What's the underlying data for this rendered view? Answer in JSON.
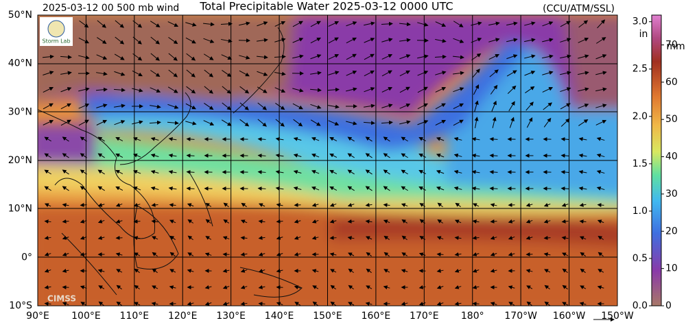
{
  "header": {
    "left": "2025-03-12 00 500 mb wind",
    "title": "Total Precipitable Water  2025-03-12 0000 UTC",
    "right": "(CCU/ATM/SSL)"
  },
  "map": {
    "lat_labels": [
      "50°N",
      "40°N",
      "30°N",
      "20°N",
      "10°N",
      "0°",
      "10°S"
    ],
    "lon_labels": [
      "90°E",
      "100°E",
      "110°E",
      "120°E",
      "130°E",
      "140°E",
      "150°E",
      "160°E",
      "170°E",
      "180°",
      "170°W",
      "160°W",
      "150°W"
    ],
    "logo_top": "Storm Lab",
    "logo_bottom": "CIMSS"
  },
  "colorbar": {
    "in_label": "in",
    "mm_label": "mm",
    "in_range": [
      0,
      3.07
    ],
    "mm_range": [
      0,
      78
    ],
    "in_ticks": [
      {
        "value": 0,
        "label": "0.0"
      },
      {
        "value": 0.5,
        "label": "0.5"
      },
      {
        "value": 1,
        "label": "1.0"
      },
      {
        "value": 1.5,
        "label": "1.5"
      },
      {
        "value": 2,
        "label": "2.0"
      },
      {
        "value": 2.5,
        "label": "2.5"
      },
      {
        "value": 3,
        "label": "3.0"
      }
    ],
    "mm_ticks": [
      0,
      10,
      20,
      30,
      40,
      50,
      60,
      70
    ]
  }
}
